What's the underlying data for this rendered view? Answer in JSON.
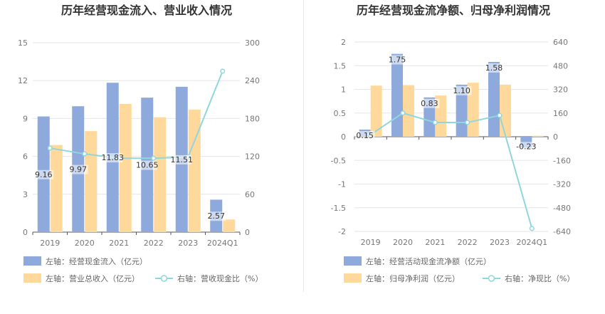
{
  "chart_data": [
    {
      "type": "bar",
      "title": "历年经营现金流入、营业收入情况",
      "categories": [
        "2019",
        "2020",
        "2021",
        "2022",
        "2023",
        "2024Q1"
      ],
      "left_axis": {
        "ticks": [
          "0",
          "3",
          "6",
          "9",
          "12",
          "15"
        ],
        "ylim": [
          0,
          15
        ]
      },
      "right_axis": {
        "ticks": [
          "0",
          "60",
          "120",
          "180",
          "240",
          "300"
        ],
        "ylim": [
          0,
          300
        ]
      },
      "series": [
        {
          "name": "左轴：经营现金流入（亿元）",
          "kind": "bar",
          "axis": "left",
          "color": "#8eaadc",
          "values": [
            9.16,
            9.97,
            11.83,
            10.65,
            11.51,
            2.57
          ],
          "labels": [
            "9.16",
            "9.97",
            "11.83",
            "10.65",
            "11.51",
            "2.57"
          ]
        },
        {
          "name": "左轴：营业总收入（亿元）",
          "kind": "bar",
          "axis": "left",
          "color": "#ffd99b",
          "values": [
            6.9,
            8.0,
            10.15,
            9.1,
            9.7,
            1.0
          ]
        },
        {
          "name": "右轴：营收现金比（%）",
          "kind": "line",
          "axis": "right",
          "color": "#8fd7dd",
          "values": [
            133,
            124,
            117,
            117,
            119,
            255
          ]
        }
      ],
      "grid": true,
      "legend": "bottom"
    },
    {
      "type": "bar",
      "title": "历年经营现金流净额、归母净利润情况",
      "categories": [
        "2019",
        "2020",
        "2021",
        "2022",
        "2023",
        "2024Q1"
      ],
      "left_axis": {
        "ticks": [
          "-2",
          "-1.5",
          "-1",
          "-0.5",
          "0",
          "0.5",
          "1",
          "1.5",
          "2"
        ],
        "ylim": [
          -2,
          2
        ]
      },
      "right_axis": {
        "ticks": [
          "-640",
          "-480",
          "-320",
          "-160",
          "0",
          "160",
          "320",
          "480",
          "640"
        ],
        "ylim": [
          -640,
          640
        ]
      },
      "series": [
        {
          "name": "左轴：经营活动现金流净额（亿元）",
          "kind": "bar",
          "axis": "left",
          "color": "#8eaadc",
          "values": [
            0.15,
            1.75,
            0.83,
            1.1,
            1.58,
            -0.23
          ],
          "labels": [
            "0.15",
            "1.75",
            "0.83",
            "1.10",
            "1.58",
            "-0.23"
          ]
        },
        {
          "name": "左轴：归母净利润（亿元）",
          "kind": "bar",
          "axis": "left",
          "color": "#ffd99b",
          "values": [
            1.08,
            1.09,
            0.87,
            1.14,
            1.1,
            0.02
          ]
        },
        {
          "name": "右轴：净现比（%）",
          "kind": "line",
          "axis": "right",
          "color": "#8fd7dd",
          "values": [
            14,
            160,
            96,
            96,
            144,
            -620
          ]
        }
      ],
      "grid": true,
      "legend": "bottom"
    }
  ]
}
